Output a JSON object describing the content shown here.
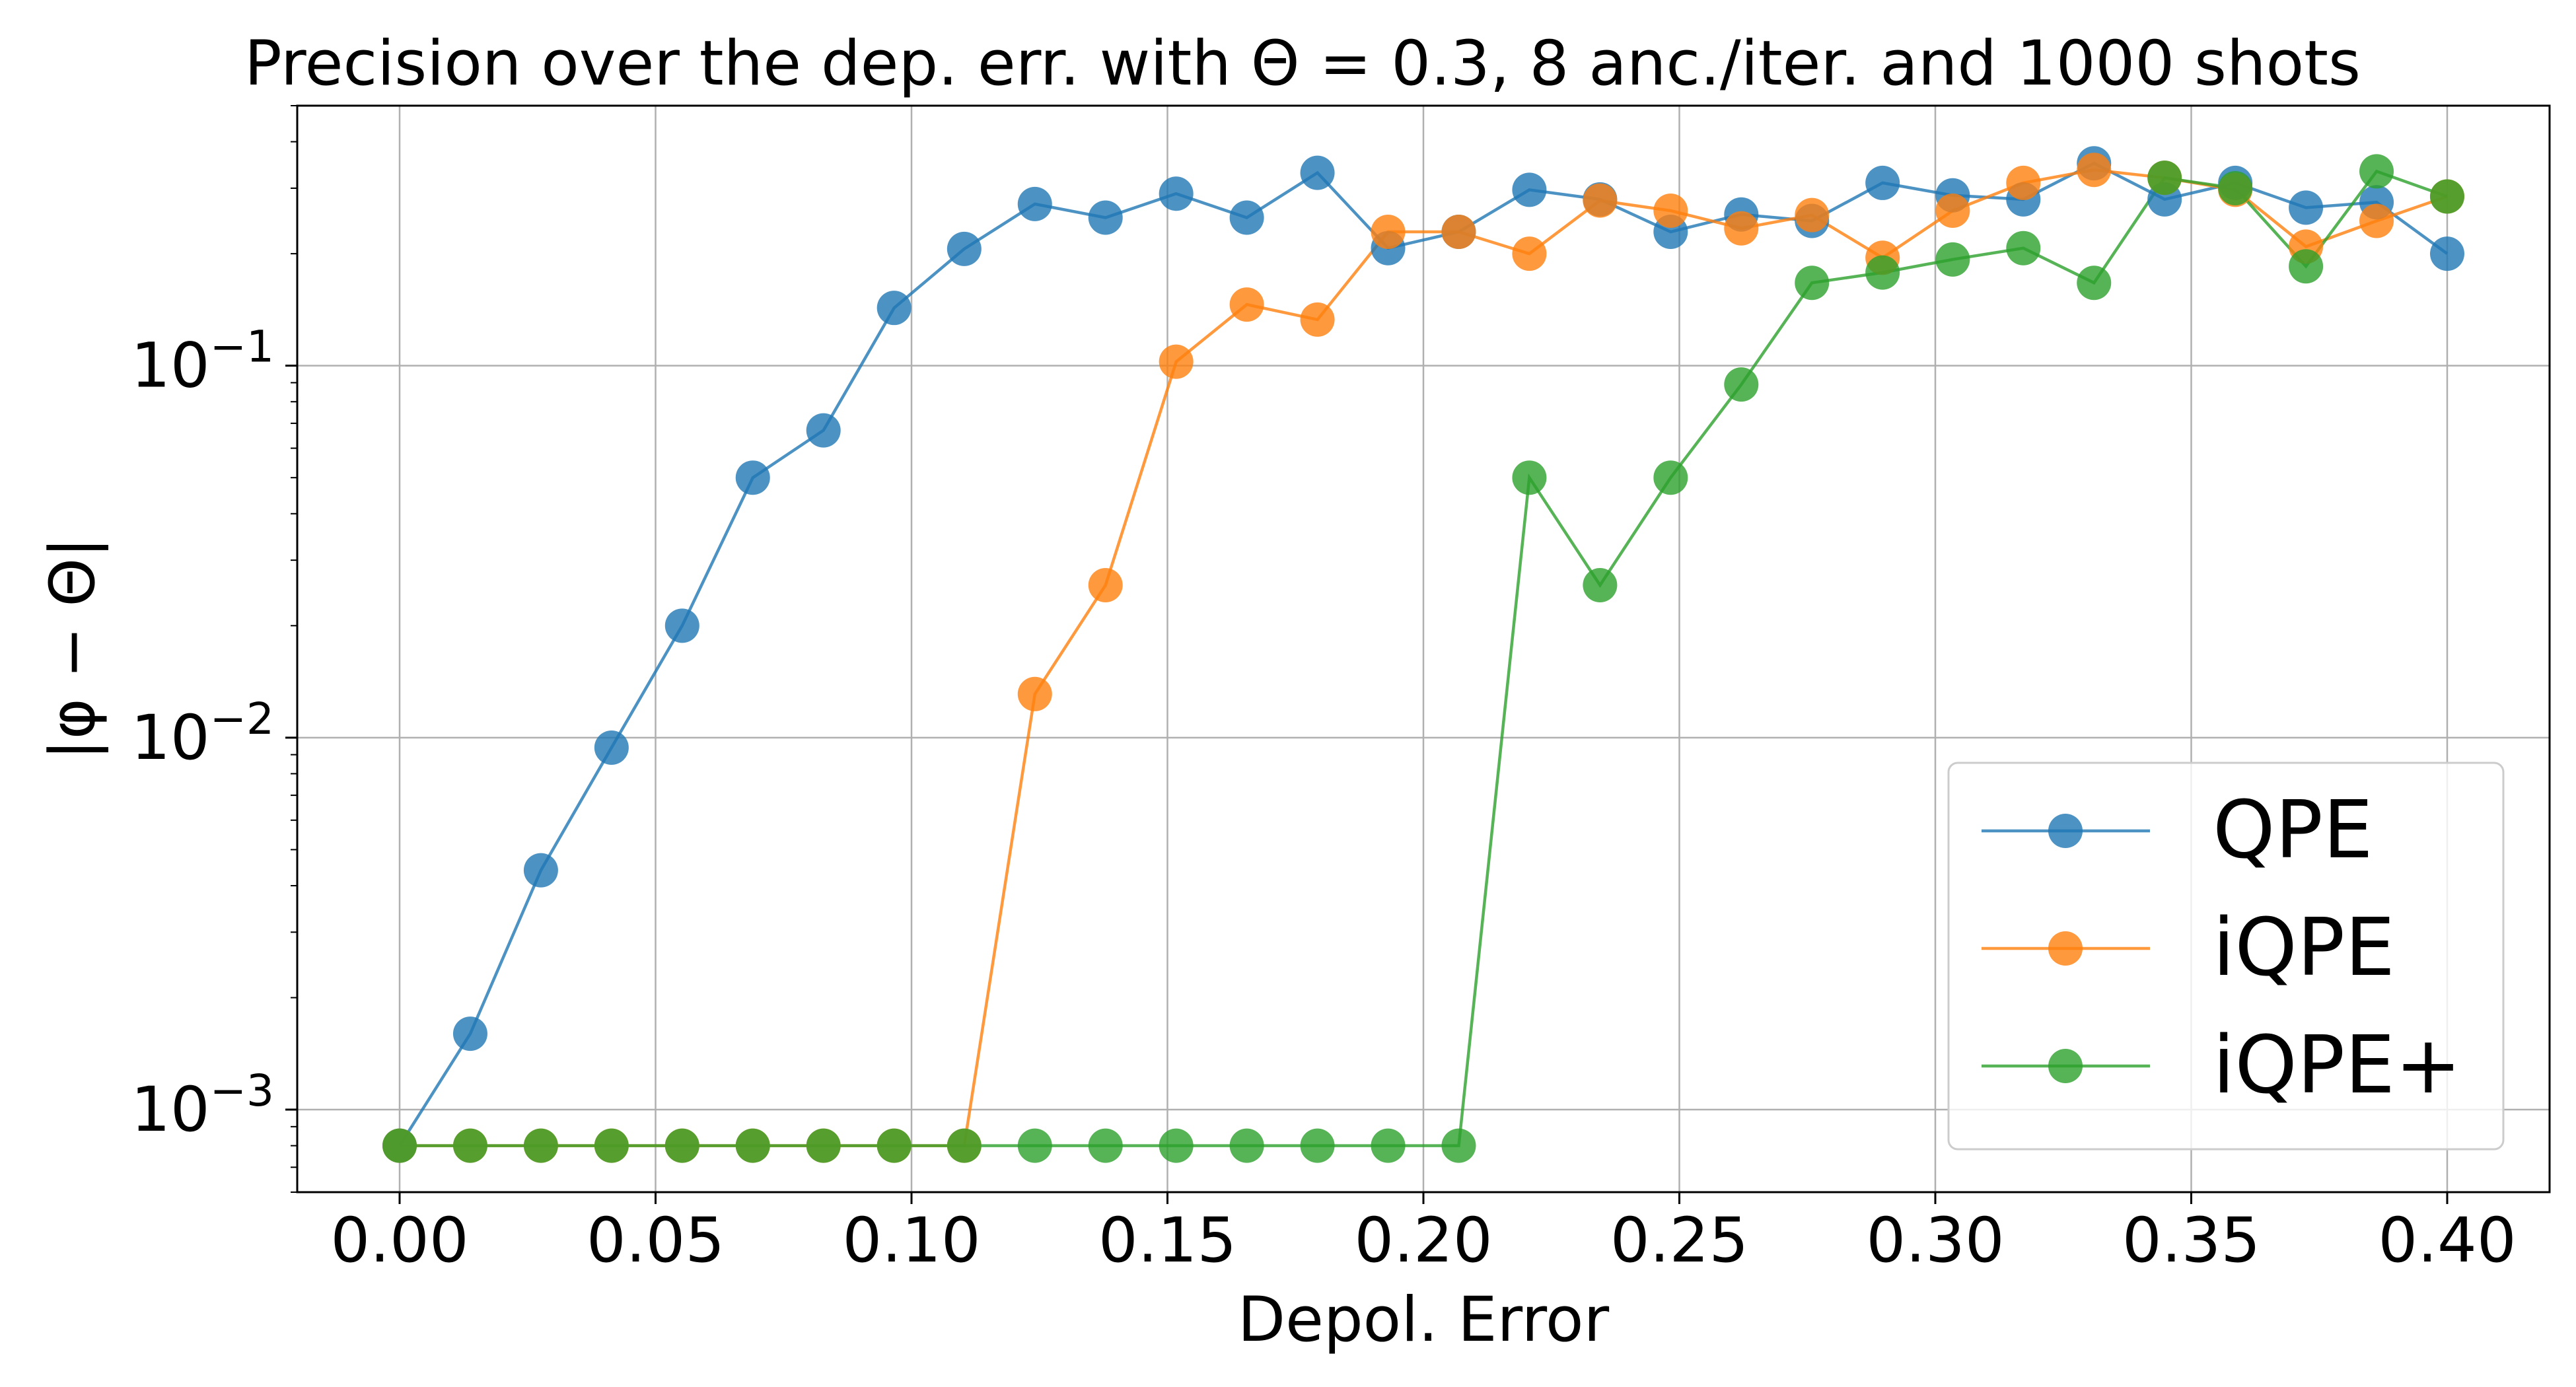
{
  "chart_data": {
    "type": "line",
    "title": "Precision over the dep. err. with Θ = 0.3, 8 anc./iter. and 1000 shots",
    "xlabel": "Depol. Error",
    "ylabel": "|φ − Θ|",
    "yscale": "log",
    "xlim": [
      -0.02,
      0.42
    ],
    "ylim": [
      0.0006,
      0.5
    ],
    "grid": true,
    "legend_position": "lower right",
    "x_ticks": [
      0.0,
      0.05,
      0.1,
      0.15,
      0.2,
      0.25,
      0.3,
      0.35,
      0.4
    ],
    "x_tick_labels": [
      "0.00",
      "0.05",
      "0.10",
      "0.15",
      "0.20",
      "0.25",
      "0.30",
      "0.35",
      "0.40"
    ],
    "y_ticks": [
      0.001,
      0.01,
      0.1
    ],
    "y_tick_labels": [
      {
        "base": "10",
        "exp": "−3"
      },
      {
        "base": "10",
        "exp": "−2"
      },
      {
        "base": "10",
        "exp": "−1"
      }
    ],
    "x": [
      0.0,
      0.0138,
      0.0276,
      0.0414,
      0.0552,
      0.069,
      0.0828,
      0.0966,
      0.1103,
      0.1241,
      0.1379,
      0.1517,
      0.1655,
      0.1793,
      0.1931,
      0.2069,
      0.2207,
      0.2345,
      0.2483,
      0.2621,
      0.2759,
      0.2897,
      0.3034,
      0.3172,
      0.331,
      0.3448,
      0.3586,
      0.3724,
      0.3862,
      0.4
    ],
    "series": [
      {
        "name": "QPE",
        "color": "#1f77b4",
        "values": [
          0.0008,
          0.0016,
          0.0044,
          0.0094,
          0.02,
          0.05,
          0.067,
          0.143,
          0.206,
          0.272,
          0.25,
          0.29,
          0.25,
          0.33,
          0.207,
          0.229,
          0.297,
          0.28,
          0.229,
          0.255,
          0.245,
          0.31,
          0.287,
          0.28,
          0.35,
          0.28,
          0.31,
          0.266,
          0.275,
          0.2
        ]
      },
      {
        "name": "iQPE",
        "color": "#ff7f0e",
        "values": [
          0.0008,
          0.0008,
          0.0008,
          0.0008,
          0.0008,
          0.0008,
          0.0008,
          0.0008,
          0.0008,
          0.0131,
          0.0257,
          0.1025,
          0.146,
          0.133,
          0.229,
          0.229,
          0.2,
          0.278,
          0.261,
          0.234,
          0.254,
          0.195,
          0.261,
          0.31,
          0.336,
          0.32,
          0.297,
          0.209,
          0.245,
          0.285
        ]
      },
      {
        "name": "iQPE+",
        "color": "#2ca02c",
        "values": [
          0.0008,
          0.0008,
          0.0008,
          0.0008,
          0.0008,
          0.0008,
          0.0008,
          0.0008,
          0.0008,
          0.0008,
          0.0008,
          0.0008,
          0.0008,
          0.0008,
          0.0008,
          0.0008,
          0.05,
          0.0257,
          0.05,
          0.089,
          0.167,
          0.178,
          0.193,
          0.207,
          0.167,
          0.32,
          0.3,
          0.185,
          0.333,
          0.285
        ]
      }
    ]
  }
}
